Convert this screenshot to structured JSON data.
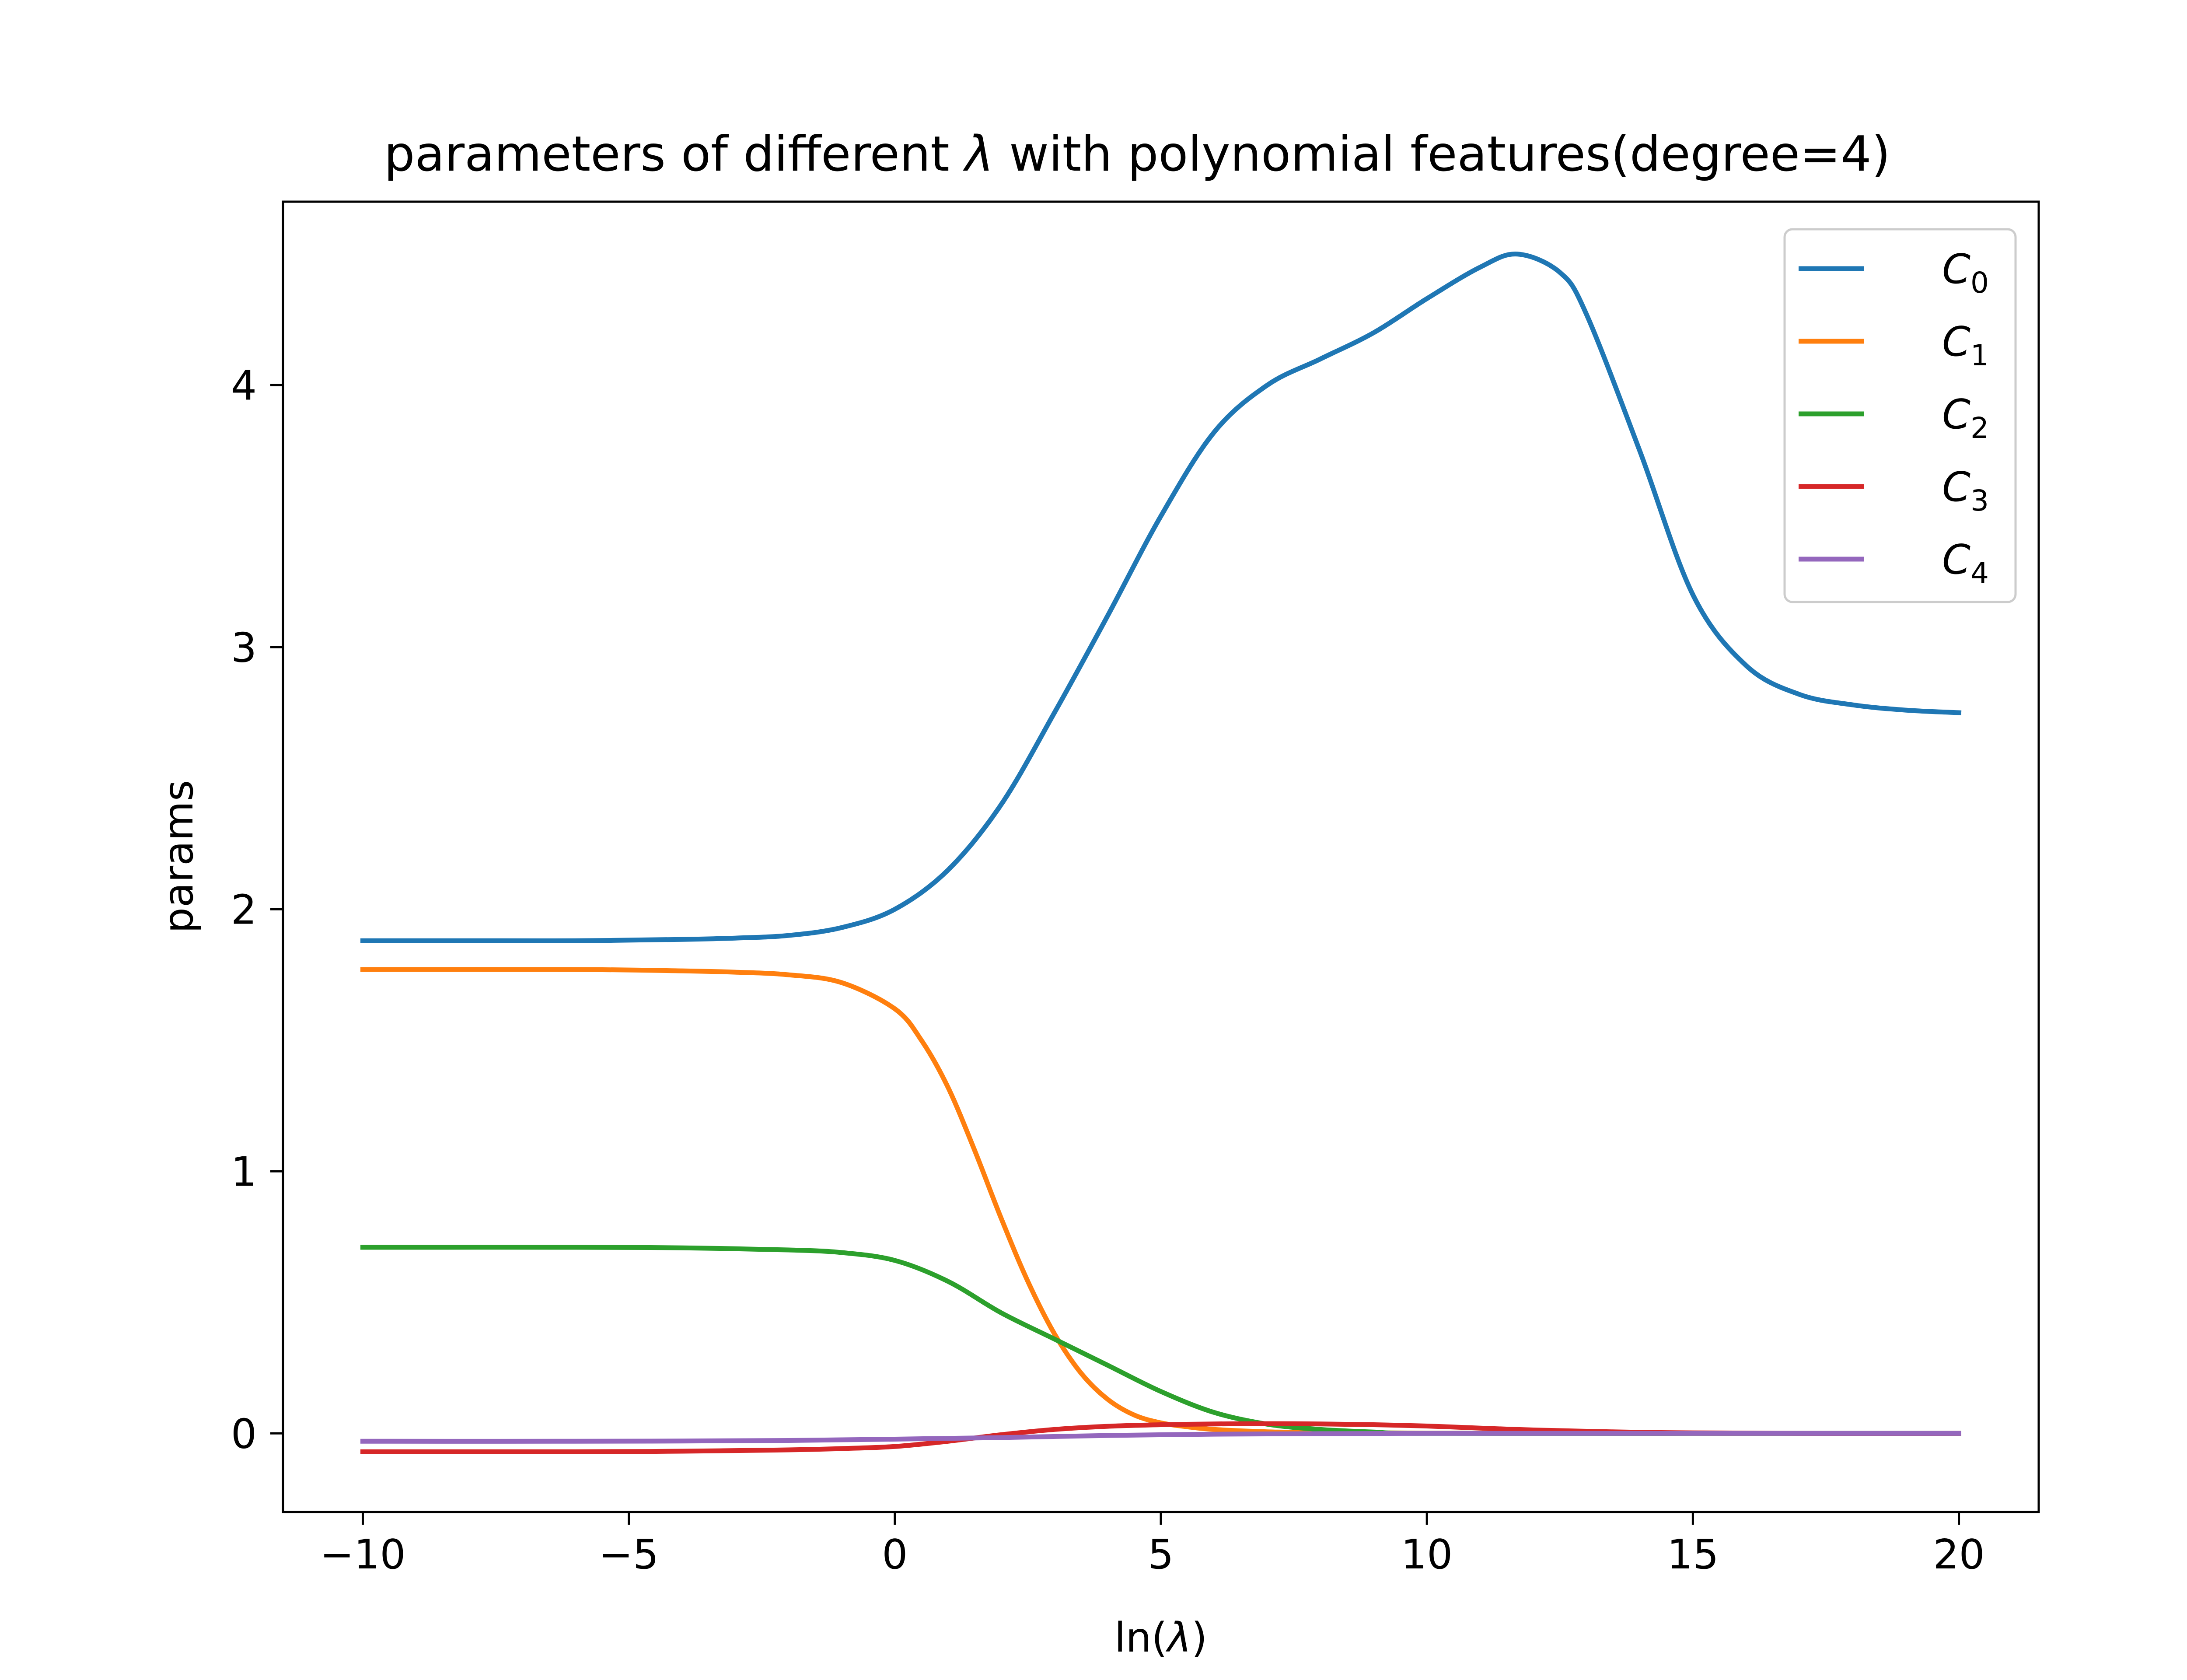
{
  "chart_data": {
    "type": "line",
    "title_prefix": "parameters of different ",
    "title_symbol": "λ",
    "title_suffix": " with polynomial features(degree=4)",
    "xlabel_prefix": "ln(",
    "xlabel_symbol": "λ",
    "xlabel_suffix": ")",
    "ylabel": "params",
    "xlim": [
      -11.5,
      21.5
    ],
    "ylim": [
      -0.3,
      4.7
    ],
    "xticks": [
      -10,
      -5,
      0,
      5,
      10,
      15,
      20
    ],
    "xtick_labels": [
      "−10",
      "−5",
      "0",
      "5",
      "10",
      "15",
      "20"
    ],
    "yticks": [
      0,
      1,
      2,
      3,
      4
    ],
    "ytick_labels": [
      "0",
      "1",
      "2",
      "3",
      "4"
    ],
    "grid": false,
    "legend_position": "top-right",
    "series": [
      {
        "name": "C0",
        "name_base": "C",
        "name_sub": "0",
        "color": "#1f77b4",
        "x": [
          -10,
          -8,
          -6,
          -4,
          -3,
          -2,
          -1,
          0,
          1,
          2,
          3,
          4,
          5,
          6,
          7,
          8,
          9,
          10,
          11,
          11.7,
          12.5,
          13,
          14,
          15,
          16,
          17,
          18,
          19,
          20
        ],
        "y": [
          1.88,
          1.88,
          1.88,
          1.885,
          1.89,
          1.9,
          1.93,
          2.0,
          2.15,
          2.4,
          2.75,
          3.12,
          3.5,
          3.82,
          4.0,
          4.1,
          4.2,
          4.33,
          4.45,
          4.5,
          4.43,
          4.27,
          3.75,
          3.2,
          2.93,
          2.82,
          2.78,
          2.76,
          2.75
        ]
      },
      {
        "name": "C1",
        "name_base": "C",
        "name_sub": "1",
        "color": "#ff7f0e",
        "x": [
          -10,
          -6,
          -4,
          -3,
          -2,
          -1,
          0,
          0.5,
          1,
          1.5,
          2,
          2.5,
          3,
          3.5,
          4,
          4.5,
          5,
          5.5,
          6,
          7,
          8,
          10,
          15,
          20
        ],
        "y": [
          1.77,
          1.77,
          1.765,
          1.76,
          1.75,
          1.72,
          1.62,
          1.5,
          1.32,
          1.08,
          0.82,
          0.58,
          0.38,
          0.23,
          0.13,
          0.07,
          0.04,
          0.025,
          0.015,
          0.006,
          0.003,
          0.001,
          0.0,
          0.0
        ],
        "x_extra": []
      },
      {
        "name": "C2",
        "name_base": "C",
        "name_sub": "2",
        "color": "#2ca02c",
        "x": [
          -10,
          -6,
          -4,
          -2,
          -1,
          0,
          1,
          2,
          3,
          4,
          5,
          6,
          7,
          8,
          9,
          10,
          15,
          20
        ],
        "y": [
          0.71,
          0.71,
          0.708,
          0.7,
          0.69,
          0.66,
          0.58,
          0.46,
          0.36,
          0.26,
          0.16,
          0.08,
          0.035,
          0.015,
          0.005,
          0.0,
          0.0,
          0.0
        ]
      },
      {
        "name": "C3",
        "name_base": "C",
        "name_sub": "3",
        "color": "#d62728",
        "x": [
          -10,
          -6,
          -4,
          -2,
          -1,
          0,
          1,
          2,
          3,
          4,
          5,
          6,
          7,
          8,
          9,
          10,
          11,
          12,
          13,
          14,
          15,
          17,
          20
        ],
        "y": [
          -0.07,
          -0.07,
          -0.068,
          -0.063,
          -0.058,
          -0.05,
          -0.03,
          -0.005,
          0.015,
          0.027,
          0.033,
          0.036,
          0.037,
          0.036,
          0.033,
          0.028,
          0.02,
          0.013,
          0.008,
          0.004,
          0.002,
          0.0,
          0.0
        ]
      },
      {
        "name": "C4",
        "name_base": "C",
        "name_sub": "4",
        "color": "#9467bd",
        "x": [
          -10,
          -6,
          -4,
          -2,
          0,
          2,
          4,
          6,
          8,
          10,
          12,
          14,
          16,
          18,
          20
        ],
        "y": [
          -0.03,
          -0.03,
          -0.029,
          -0.027,
          -0.022,
          -0.016,
          -0.008,
          -0.003,
          -0.001,
          0.0,
          0.0,
          0.0,
          0.0,
          0.0,
          0.0
        ]
      }
    ]
  }
}
